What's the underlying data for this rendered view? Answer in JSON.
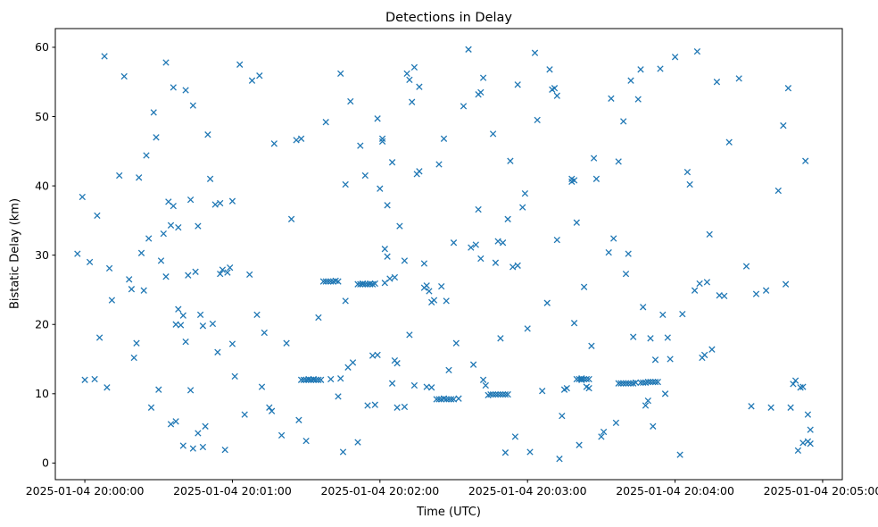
{
  "figure": {
    "title": "Detections in Delay",
    "xlabel": "Time (UTC)",
    "ylabel": "Bistatic Delay (km)"
  },
  "chart_data": {
    "type": "scatter",
    "title": "Detections in Delay",
    "xlabel": "Time (UTC)",
    "ylabel": "Bistatic Delay (km)",
    "marker": "x",
    "marker_color": "#1f77b4",
    "background": "#ffffff",
    "grid": false,
    "legend": "none",
    "x_axis": {
      "unit": "seconds after 2025-01-04 20:00:00 UTC",
      "lim": [
        -12,
        308
      ],
      "ticks": [
        0,
        60,
        120,
        180,
        240,
        300
      ],
      "tick_labels": [
        "2025-01-04 20:00:00",
        "2025-01-04 20:01:00",
        "2025-01-04 20:02:00",
        "2025-01-04 20:03:00",
        "2025-01-04 20:04:00",
        "2025-01-04 20:05:00"
      ]
    },
    "y_axis": {
      "lim": [
        -2.4,
        62.7
      ],
      "ticks": [
        0,
        10,
        20,
        30,
        40,
        50,
        60
      ],
      "tick_labels": [
        "0",
        "10",
        "20",
        "30",
        "40",
        "50",
        "60"
      ]
    },
    "points": [
      [
        -3,
        30.2
      ],
      [
        -1,
        38.4
      ],
      [
        0,
        12.0
      ],
      [
        2,
        29.0
      ],
      [
        4,
        12.1
      ],
      [
        5,
        35.7
      ],
      [
        6,
        18.1
      ],
      [
        8,
        58.7
      ],
      [
        9,
        10.9
      ],
      [
        10,
        28.1
      ],
      [
        11,
        23.5
      ],
      [
        14,
        41.5
      ],
      [
        16,
        55.8
      ],
      [
        18,
        26.5
      ],
      [
        19,
        25.1
      ],
      [
        20,
        15.2
      ],
      [
        21,
        17.3
      ],
      [
        22,
        41.2
      ],
      [
        23,
        30.3
      ],
      [
        24,
        24.9
      ],
      [
        25,
        44.4
      ],
      [
        26,
        32.4
      ],
      [
        27,
        8.0
      ],
      [
        28,
        50.6
      ],
      [
        29,
        47.0
      ],
      [
        30,
        10.6
      ],
      [
        31,
        29.2
      ],
      [
        32,
        33.1
      ],
      [
        33,
        57.8
      ],
      [
        33,
        26.9
      ],
      [
        34,
        37.7
      ],
      [
        35,
        34.3
      ],
      [
        35,
        5.6
      ],
      [
        36,
        54.2
      ],
      [
        36,
        37.1
      ],
      [
        37,
        20.0
      ],
      [
        37,
        6.0
      ],
      [
        38,
        22.2
      ],
      [
        38,
        34.0
      ],
      [
        39,
        19.9
      ],
      [
        40,
        21.3
      ],
      [
        40,
        2.5
      ],
      [
        41,
        53.8
      ],
      [
        41,
        17.5
      ],
      [
        42,
        27.1
      ],
      [
        43,
        38.0
      ],
      [
        43,
        10.5
      ],
      [
        44,
        51.6
      ],
      [
        44,
        2.1
      ],
      [
        45,
        27.6
      ],
      [
        46,
        4.3
      ],
      [
        46,
        34.2
      ],
      [
        47,
        21.4
      ],
      [
        48,
        19.8
      ],
      [
        48,
        2.3
      ],
      [
        49,
        5.3
      ],
      [
        50,
        47.4
      ],
      [
        51,
        41.0
      ],
      [
        52,
        20.1
      ],
      [
        53,
        37.3
      ],
      [
        54,
        16.0
      ],
      [
        55,
        27.3
      ],
      [
        55,
        37.5
      ],
      [
        56,
        27.9
      ],
      [
        57,
        1.9
      ],
      [
        58,
        27.5
      ],
      [
        59,
        28.2
      ],
      [
        60,
        17.2
      ],
      [
        60,
        37.8
      ],
      [
        61,
        12.5
      ],
      [
        63,
        57.5
      ],
      [
        65,
        7.0
      ],
      [
        67,
        27.2
      ],
      [
        68,
        55.2
      ],
      [
        70,
        21.4
      ],
      [
        71,
        55.9
      ],
      [
        72,
        11.0
      ],
      [
        73,
        18.8
      ],
      [
        75,
        8.0
      ],
      [
        76,
        7.5
      ],
      [
        77,
        46.1
      ],
      [
        80,
        4.0
      ],
      [
        82,
        17.3
      ],
      [
        84,
        35.2
      ],
      [
        86,
        46.6
      ],
      [
        87,
        6.2
      ],
      [
        88,
        46.8
      ],
      [
        88,
        12.0
      ],
      [
        89,
        12.0
      ],
      [
        90,
        12.0
      ],
      [
        90,
        3.2
      ],
      [
        91,
        12.0
      ],
      [
        91,
        12.1
      ],
      [
        92,
        12.0
      ],
      [
        93,
        12.0
      ],
      [
        93,
        12.1
      ],
      [
        94,
        12.0
      ],
      [
        95,
        12.0
      ],
      [
        95,
        21.0
      ],
      [
        96,
        12.0
      ],
      [
        97,
        26.2
      ],
      [
        98,
        26.2
      ],
      [
        98,
        49.2
      ],
      [
        99,
        26.2
      ],
      [
        100,
        26.2
      ],
      [
        100,
        12.1
      ],
      [
        101,
        26.2
      ],
      [
        102,
        26.3
      ],
      [
        103,
        26.2
      ],
      [
        103,
        9.6
      ],
      [
        104,
        56.2
      ],
      [
        104,
        12.2
      ],
      [
        105,
        1.6
      ],
      [
        106,
        23.4
      ],
      [
        106,
        40.2
      ],
      [
        107,
        13.8
      ],
      [
        108,
        52.2
      ],
      [
        109,
        14.5
      ],
      [
        111,
        3.0
      ],
      [
        111,
        25.8
      ],
      [
        112,
        25.8
      ],
      [
        112,
        45.8
      ],
      [
        113,
        25.8
      ],
      [
        113,
        25.9
      ],
      [
        114,
        25.8
      ],
      [
        114,
        41.5
      ],
      [
        115,
        25.8
      ],
      [
        115,
        8.3
      ],
      [
        116,
        25.8
      ],
      [
        116,
        25.9
      ],
      [
        117,
        25.8
      ],
      [
        117,
        15.5
      ],
      [
        118,
        25.9
      ],
      [
        118,
        8.4
      ],
      [
        119,
        15.6
      ],
      [
        119,
        49.7
      ],
      [
        120,
        39.6
      ],
      [
        121,
        46.4
      ],
      [
        121,
        46.8
      ],
      [
        122,
        30.9
      ],
      [
        122,
        26.0
      ],
      [
        123,
        37.2
      ],
      [
        123,
        29.8
      ],
      [
        124,
        26.6
      ],
      [
        125,
        11.5
      ],
      [
        125,
        43.4
      ],
      [
        126,
        26.8
      ],
      [
        126,
        14.8
      ],
      [
        127,
        8.0
      ],
      [
        127,
        14.4
      ],
      [
        128,
        34.2
      ],
      [
        130,
        29.2
      ],
      [
        130,
        8.1
      ],
      [
        131,
        56.2
      ],
      [
        132,
        55.3
      ],
      [
        132,
        18.5
      ],
      [
        133,
        52.1
      ],
      [
        134,
        57.1
      ],
      [
        134,
        11.2
      ],
      [
        135,
        41.7
      ],
      [
        136,
        54.3
      ],
      [
        136,
        42.1
      ],
      [
        138,
        28.8
      ],
      [
        138,
        25.3
      ],
      [
        139,
        11.0
      ],
      [
        139,
        25.6
      ],
      [
        140,
        24.8
      ],
      [
        141,
        10.9
      ],
      [
        141,
        23.2
      ],
      [
        142,
        23.5
      ],
      [
        143,
        9.2
      ],
      [
        144,
        9.2
      ],
      [
        144,
        43.1
      ],
      [
        145,
        9.2
      ],
      [
        145,
        25.5
      ],
      [
        146,
        9.3
      ],
      [
        146,
        46.8
      ],
      [
        147,
        9.2
      ],
      [
        147,
        23.4
      ],
      [
        148,
        9.2
      ],
      [
        148,
        13.4
      ],
      [
        149,
        9.2
      ],
      [
        150,
        9.2
      ],
      [
        150,
        31.8
      ],
      [
        151,
        17.3
      ],
      [
        152,
        9.3
      ],
      [
        154,
        51.5
      ],
      [
        156,
        59.7
      ],
      [
        157,
        31.1
      ],
      [
        158,
        14.2
      ],
      [
        159,
        31.5
      ],
      [
        160,
        53.2
      ],
      [
        160,
        36.6
      ],
      [
        161,
        53.5
      ],
      [
        161,
        29.5
      ],
      [
        162,
        55.6
      ],
      [
        162,
        12.0
      ],
      [
        163,
        11.2
      ],
      [
        164,
        9.8
      ],
      [
        165,
        9.9
      ],
      [
        166,
        9.9
      ],
      [
        166,
        47.5
      ],
      [
        167,
        9.9
      ],
      [
        167,
        28.9
      ],
      [
        168,
        9.9
      ],
      [
        168,
        32.0
      ],
      [
        169,
        9.9
      ],
      [
        169,
        18.0
      ],
      [
        170,
        9.9
      ],
      [
        170,
        31.8
      ],
      [
        171,
        9.9
      ],
      [
        171,
        1.5
      ],
      [
        172,
        9.9
      ],
      [
        172,
        35.2
      ],
      [
        173,
        43.6
      ],
      [
        174,
        28.3
      ],
      [
        175,
        3.8
      ],
      [
        176,
        54.6
      ],
      [
        176,
        28.5
      ],
      [
        178,
        36.9
      ],
      [
        179,
        38.9
      ],
      [
        180,
        19.4
      ],
      [
        181,
        1.6
      ],
      [
        183,
        59.2
      ],
      [
        184,
        49.5
      ],
      [
        186,
        10.4
      ],
      [
        188,
        23.1
      ],
      [
        189,
        56.8
      ],
      [
        190,
        53.9
      ],
      [
        191,
        54.1
      ],
      [
        192,
        53.0
      ],
      [
        192,
        32.2
      ],
      [
        193,
        0.6
      ],
      [
        194,
        6.8
      ],
      [
        195,
        10.6
      ],
      [
        196,
        10.8
      ],
      [
        198,
        40.6
      ],
      [
        198,
        41.0
      ],
      [
        199,
        40.8
      ],
      [
        199,
        20.2
      ],
      [
        200,
        12.1
      ],
      [
        200,
        34.7
      ],
      [
        201,
        12.1
      ],
      [
        201,
        2.6
      ],
      [
        202,
        12.2
      ],
      [
        202,
        12.0
      ],
      [
        203,
        12.1
      ],
      [
        203,
        25.4
      ],
      [
        204,
        12.1
      ],
      [
        204,
        11.0
      ],
      [
        205,
        12.1
      ],
      [
        205,
        10.8
      ],
      [
        206,
        16.9
      ],
      [
        207,
        44.0
      ],
      [
        208,
        41.0
      ],
      [
        210,
        3.8
      ],
      [
        211,
        4.5
      ],
      [
        213,
        30.4
      ],
      [
        214,
        52.6
      ],
      [
        215,
        32.4
      ],
      [
        216,
        5.8
      ],
      [
        217,
        43.5
      ],
      [
        217,
        11.5
      ],
      [
        218,
        11.5
      ],
      [
        219,
        11.5
      ],
      [
        219,
        49.3
      ],
      [
        220,
        11.5
      ],
      [
        220,
        27.3
      ],
      [
        221,
        11.5
      ],
      [
        221,
        30.2
      ],
      [
        222,
        11.5
      ],
      [
        222,
        55.2
      ],
      [
        223,
        11.5
      ],
      [
        223,
        18.2
      ],
      [
        224,
        11.6
      ],
      [
        225,
        52.5
      ],
      [
        226,
        11.6
      ],
      [
        226,
        56.8
      ],
      [
        227,
        11.6
      ],
      [
        227,
        22.5
      ],
      [
        228,
        11.6
      ],
      [
        228,
        8.3
      ],
      [
        229,
        11.7
      ],
      [
        229,
        9.0
      ],
      [
        230,
        11.7
      ],
      [
        230,
        18.0
      ],
      [
        231,
        11.7
      ],
      [
        231,
        5.3
      ],
      [
        232,
        11.7
      ],
      [
        232,
        14.9
      ],
      [
        233,
        11.7
      ],
      [
        234,
        56.9
      ],
      [
        235,
        21.4
      ],
      [
        236,
        10.0
      ],
      [
        237,
        18.1
      ],
      [
        238,
        15.0
      ],
      [
        240,
        58.6
      ],
      [
        242,
        1.2
      ],
      [
        243,
        21.5
      ],
      [
        245,
        42.0
      ],
      [
        246,
        40.2
      ],
      [
        248,
        24.9
      ],
      [
        249,
        59.4
      ],
      [
        250,
        25.9
      ],
      [
        251,
        15.2
      ],
      [
        252,
        15.6
      ],
      [
        253,
        26.1
      ],
      [
        254,
        33.0
      ],
      [
        255,
        16.4
      ],
      [
        257,
        55.0
      ],
      [
        258,
        24.2
      ],
      [
        260,
        24.1
      ],
      [
        262,
        46.3
      ],
      [
        266,
        55.5
      ],
      [
        269,
        28.4
      ],
      [
        271,
        8.2
      ],
      [
        273,
        24.4
      ],
      [
        277,
        24.9
      ],
      [
        279,
        8.0
      ],
      [
        282,
        39.3
      ],
      [
        284,
        48.7
      ],
      [
        285,
        25.8
      ],
      [
        286,
        54.1
      ],
      [
        287,
        8.0
      ],
      [
        288,
        11.4
      ],
      [
        289,
        11.9
      ],
      [
        290,
        1.8
      ],
      [
        291,
        10.9
      ],
      [
        292,
        11.0
      ],
      [
        292,
        2.9
      ],
      [
        293,
        43.6
      ],
      [
        294,
        3.1
      ],
      [
        294,
        7.0
      ],
      [
        295,
        4.8
      ],
      [
        295,
        2.8
      ]
    ]
  }
}
